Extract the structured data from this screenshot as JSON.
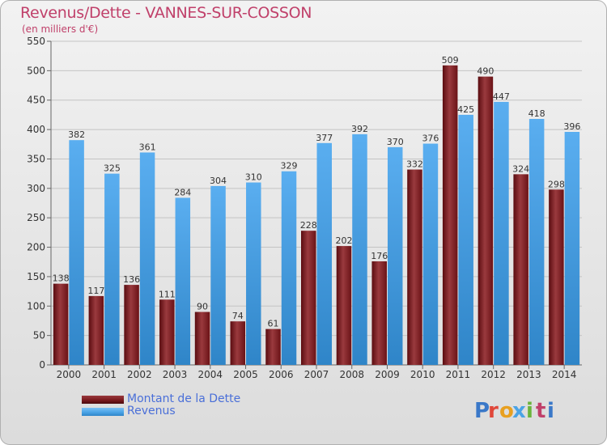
{
  "title": "Revenus/Dette - VANNES-SUR-COSSON",
  "subtitle": "(en milliers d'€)",
  "legend": {
    "dette_label": "Montant de la Dette",
    "revenus_label": "Revenus"
  },
  "logo": {
    "text": "Proxiti"
  },
  "colors": {
    "dette": "#7a1a1e",
    "revenus": "#4aa3e6",
    "title": "#c0406a",
    "legend_text": "#4a6fd8"
  },
  "chart_data": {
    "type": "bar",
    "title": "Revenus/Dette - VANNES-SUR-COSSON",
    "subtitle": "(en milliers d'€)",
    "categories": [
      "2000",
      "2001",
      "2002",
      "2003",
      "2004",
      "2005",
      "2006",
      "2007",
      "2008",
      "2009",
      "2010",
      "2011",
      "2012",
      "2013",
      "2014"
    ],
    "series": [
      {
        "name": "Montant de la Dette",
        "values": [
          138,
          117,
          136,
          111,
          90,
          74,
          61,
          228,
          202,
          176,
          332,
          509,
          490,
          324,
          298
        ]
      },
      {
        "name": "Revenus",
        "values": [
          382,
          325,
          361,
          284,
          304,
          310,
          329,
          377,
          392,
          370,
          376,
          425,
          447,
          418,
          396
        ]
      }
    ],
    "ylim": [
      0,
      550
    ],
    "yticks": [
      0,
      50,
      100,
      150,
      200,
      250,
      300,
      350,
      400,
      450,
      500,
      550
    ],
    "grid": true,
    "legend_position": "bottom-left"
  }
}
